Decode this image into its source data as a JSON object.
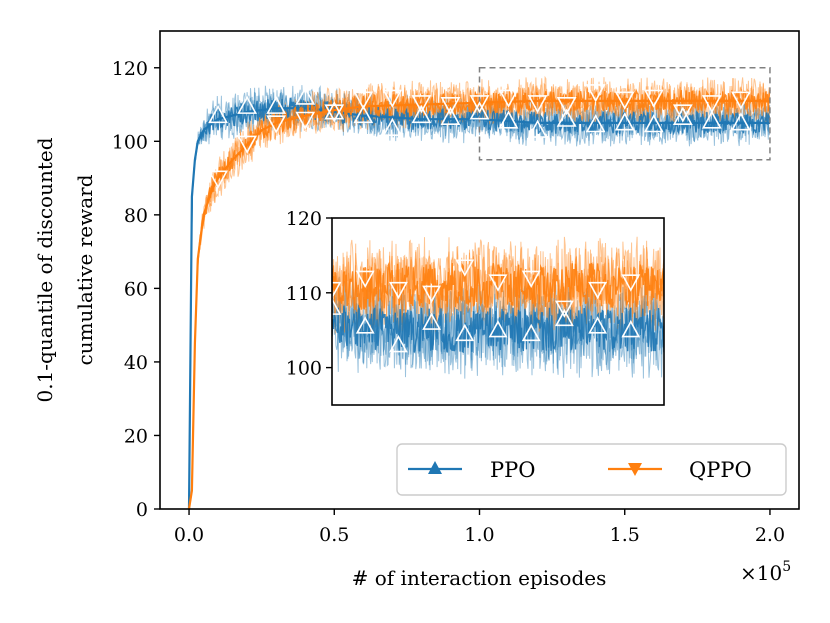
{
  "chart_data": {
    "type": "line",
    "xlabel": "# of interaction episodes",
    "x_scale_note": "×10^5",
    "x_scale_base": "×10",
    "x_scale_exp": "5",
    "ylabel_line1": "0.1-quantile of discounted",
    "ylabel_line2": "cumulative reward",
    "xlim": [
      -0.1,
      2.1
    ],
    "ylim": [
      0,
      130
    ],
    "x_ticks": [
      0.0,
      0.5,
      1.0,
      1.5,
      2.0
    ],
    "x_tick_labels": [
      "0.0",
      "0.5",
      "1.0",
      "1.5",
      "2.0"
    ],
    "y_ticks": [
      0,
      20,
      40,
      60,
      80,
      100,
      120
    ],
    "y_tick_labels": [
      "0",
      "20",
      "40",
      "60",
      "80",
      "100",
      "120"
    ],
    "legend_position": "lower-right",
    "series": [
      {
        "name": "PPO",
        "color": "#1f77b4",
        "marker": "triangle-up",
        "curve": {
          "x": [
            0.0,
            0.01,
            0.02,
            0.03,
            0.05,
            0.08,
            0.1,
            0.15,
            0.2,
            0.3,
            0.4,
            0.5,
            0.6,
            0.8,
            1.0,
            1.2,
            1.4,
            1.6,
            1.8,
            2.0
          ],
          "y": [
            0,
            85,
            95,
            100,
            103,
            105,
            106,
            107,
            108,
            109,
            109,
            108,
            107,
            106,
            106,
            105,
            105,
            105,
            105,
            105
          ]
        },
        "markers": {
          "x": [
            0.1,
            0.2,
            0.3,
            0.4,
            0.5,
            0.6,
            0.7,
            0.8,
            0.9,
            1.0,
            1.1,
            1.2,
            1.3,
            1.4,
            1.5,
            1.6,
            1.7,
            1.8,
            1.9
          ],
          "y": [
            107,
            109.5,
            109.5,
            112,
            108,
            107,
            103.5,
            107,
            106.5,
            108,
            105.5,
            103,
            106,
            104.5,
            105,
            104.5,
            106.5,
            105.5,
            105
          ]
        }
      },
      {
        "name": "QPPO",
        "color": "#ff7f0e",
        "marker": "triangle-down",
        "curve": {
          "x": [
            0.0,
            0.01,
            0.02,
            0.03,
            0.05,
            0.08,
            0.1,
            0.15,
            0.2,
            0.25,
            0.3,
            0.4,
            0.5,
            0.6,
            0.8,
            1.0,
            1.2,
            1.4,
            1.6,
            1.8,
            2.0
          ],
          "y": [
            0,
            5,
            45,
            68,
            80,
            87,
            90,
            95,
            99,
            103,
            105,
            107,
            108.5,
            109.5,
            110,
            110.5,
            111,
            111,
            111,
            111,
            111
          ]
        },
        "markers": {
          "x": [
            0.1,
            0.2,
            0.3,
            0.4,
            0.5,
            0.6,
            0.7,
            0.8,
            0.9,
            1.0,
            1.1,
            1.2,
            1.3,
            1.4,
            1.5,
            1.6,
            1.7,
            1.8,
            1.9
          ],
          "y": [
            90,
            99.5,
            105,
            106,
            108,
            111.5,
            112,
            110.5,
            110,
            110.5,
            112,
            110.5,
            110,
            113.5,
            111.5,
            112,
            108,
            110.5,
            111.5
          ]
        }
      }
    ],
    "inset": {
      "xlim": [
        1.0,
        2.0
      ],
      "ylim": [
        95,
        120
      ],
      "y_ticks": [
        100,
        110,
        120
      ],
      "y_tick_labels": [
        "100",
        "110",
        "120"
      ],
      "zoom_box": {
        "x": [
          1.0,
          2.0
        ],
        "y": [
          95,
          120
        ]
      }
    }
  }
}
